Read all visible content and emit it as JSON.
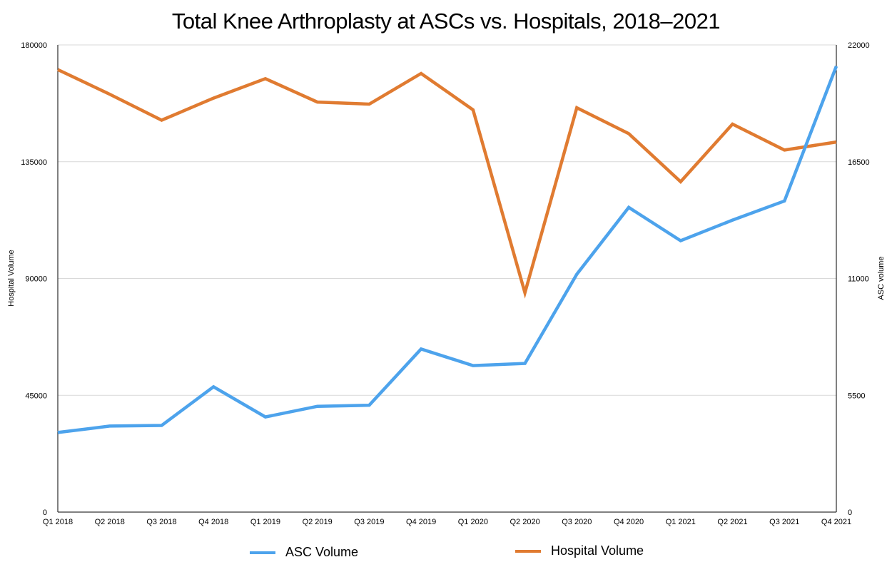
{
  "chart_data": {
    "type": "line",
    "title": "Total Knee Arthroplasty at ASCs vs. Hospitals, 2018–2021",
    "categories": [
      "Q1 2018",
      "Q2 2018",
      "Q3 2018",
      "Q4 2018",
      "Q1 2019",
      "Q2 2019",
      "Q3 2019",
      "Q4 2019",
      "Q1 2020",
      "Q2 2020",
      "Q3 2020",
      "Q4 2020",
      "Q1 2021",
      "Q2 2021",
      "Q3 2021",
      "Q4 2021"
    ],
    "y_left": {
      "label": "Hospital Volume",
      "ylim": [
        0,
        180000
      ],
      "ticks": [
        "0",
        "45000",
        "90000",
        "135000",
        "180000"
      ]
    },
    "y_right": {
      "label": "ASC volume",
      "ylim": [
        0,
        22000
      ],
      "ticks": [
        "0",
        "5500",
        "11000",
        "16500",
        "22000"
      ]
    },
    "grid": true,
    "legend_position": "bottom",
    "series": [
      {
        "name": "ASC Volume",
        "axis": "right",
        "color": "#4da3ec",
        "values": [
          3750,
          4050,
          4080,
          5900,
          4480,
          4980,
          5030,
          7680,
          6900,
          7000,
          11200,
          14350,
          12780,
          13750,
          14650,
          21000
        ]
      },
      {
        "name": "Hospital Volume",
        "axis": "left",
        "color": "#e07b31",
        "values": [
          170500,
          161000,
          151000,
          159500,
          167000,
          158000,
          157200,
          169000,
          155000,
          84500,
          155800,
          145800,
          127300,
          149500,
          139500,
          142600
        ]
      }
    ]
  }
}
